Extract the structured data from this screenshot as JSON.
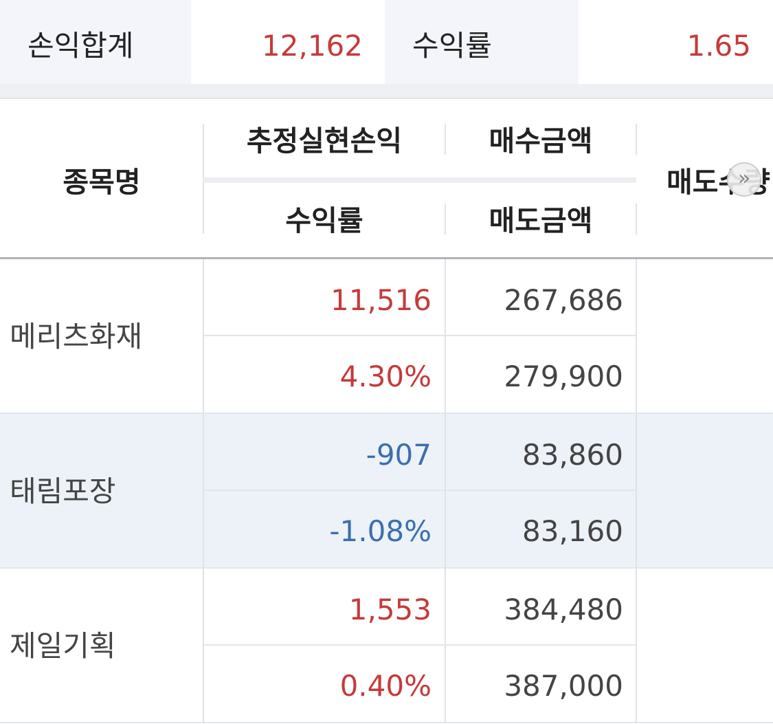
{
  "summary": {
    "total_label": "손익합계",
    "total_value": "12,162",
    "rate_label": "수익률",
    "rate_value": "1.65"
  },
  "table": {
    "headers": {
      "name": "종목명",
      "est_profit": "추정실현손익",
      "buy_amount": "매수금액",
      "rate": "수익률",
      "sell_amount": "매도금액",
      "sell_qty": "매도수량"
    },
    "rows": [
      {
        "name": "메리츠화재",
        "profit": "11,516",
        "rate": "4.30%",
        "buy": "267,686",
        "sell": "279,900"
      },
      {
        "name": "태림포장",
        "profit": "-907",
        "rate": "-1.08%",
        "buy": "83,860",
        "sell": "83,160"
      },
      {
        "name": "제일기획",
        "profit": "1,553",
        "rate": "0.40%",
        "buy": "384,480",
        "sell": "387,000"
      }
    ]
  }
}
